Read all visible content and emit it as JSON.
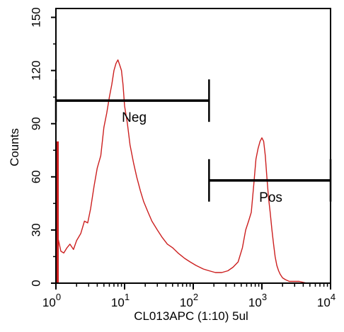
{
  "chart_data": {
    "type": "line",
    "xlabel": "CL013APC (1:10)  5ul",
    "ylabel": "Counts",
    "x_scale": "log",
    "xlim": [
      1,
      10000
    ],
    "ylim": [
      0,
      155
    ],
    "y_ticks": [
      0,
      30,
      60,
      90,
      120,
      150
    ],
    "y_tick_labels": [
      "0",
      "30",
      "60",
      "90",
      "120",
      "150"
    ],
    "x_ticks": [
      1,
      10,
      100,
      1000,
      10000
    ],
    "x_tick_labels": [
      {
        "base": "10",
        "exp": "0"
      },
      {
        "base": "10",
        "exp": "1"
      },
      {
        "base": "10",
        "exp": "2"
      },
      {
        "base": "10",
        "exp": "3"
      },
      {
        "base": "10",
        "exp": "4"
      }
    ],
    "grid": false,
    "colors": {
      "histogram": "#cc1f1f",
      "gate": "#000000",
      "axis": "#000000"
    },
    "series": [
      {
        "x": [
          1.0,
          1.08,
          1.18,
          1.3,
          1.45,
          1.6,
          1.8,
          2.0,
          2.3,
          2.6,
          2.9,
          3.2,
          3.6,
          4.0,
          4.5,
          5.0,
          5.5,
          6.0,
          6.5,
          7.0,
          7.5,
          8.0,
          8.5,
          9.0,
          9.5,
          10.0,
          11.0,
          12.0,
          13.5,
          15.0,
          17.0,
          19.0,
          22.0,
          25.0,
          30.0,
          35.0,
          42.0,
          50.0,
          60.0,
          75.0,
          90.0,
          110.0,
          140.0,
          170.0,
          210.0,
          260.0,
          320.0,
          380.0,
          450.0,
          520.0,
          580.0,
          640.0,
          700.0,
          760.0,
          820.0,
          880.0,
          940.0,
          1000.0,
          1060.0,
          1120.0,
          1180.0,
          1250.0,
          1320.0,
          1400.0,
          1480.0,
          1560.0,
          1650.0,
          1750.0,
          1850.0,
          2000.0,
          2200.0,
          2500.0,
          2900.0,
          3500.0,
          4500.0,
          6000.0,
          8000.0,
          10000.0
        ],
        "y": [
          80,
          25,
          18,
          17,
          20,
          22,
          19,
          24,
          28,
          35,
          34,
          42,
          55,
          65,
          72,
          88,
          96,
          105,
          112,
          120,
          124,
          126,
          123,
          120,
          112,
          100,
          90,
          78,
          68,
          60,
          52,
          46,
          40,
          35,
          30,
          26,
          22,
          20,
          17,
          14,
          12,
          10,
          8,
          7,
          6,
          6,
          7,
          9,
          12,
          20,
          30,
          35,
          40,
          55,
          70,
          76,
          80,
          82,
          80,
          72,
          60,
          48,
          40,
          30,
          22,
          15,
          10,
          7,
          5,
          3,
          2,
          1,
          1,
          1,
          0,
          0,
          0,
          0
        ]
      }
    ],
    "gates": [
      {
        "label": "Neg",
        "x_start": 1,
        "x_end": 170,
        "y": 103
      },
      {
        "label": "Pos",
        "x_start": 170,
        "x_end": 10000,
        "y": 58
      }
    ]
  }
}
